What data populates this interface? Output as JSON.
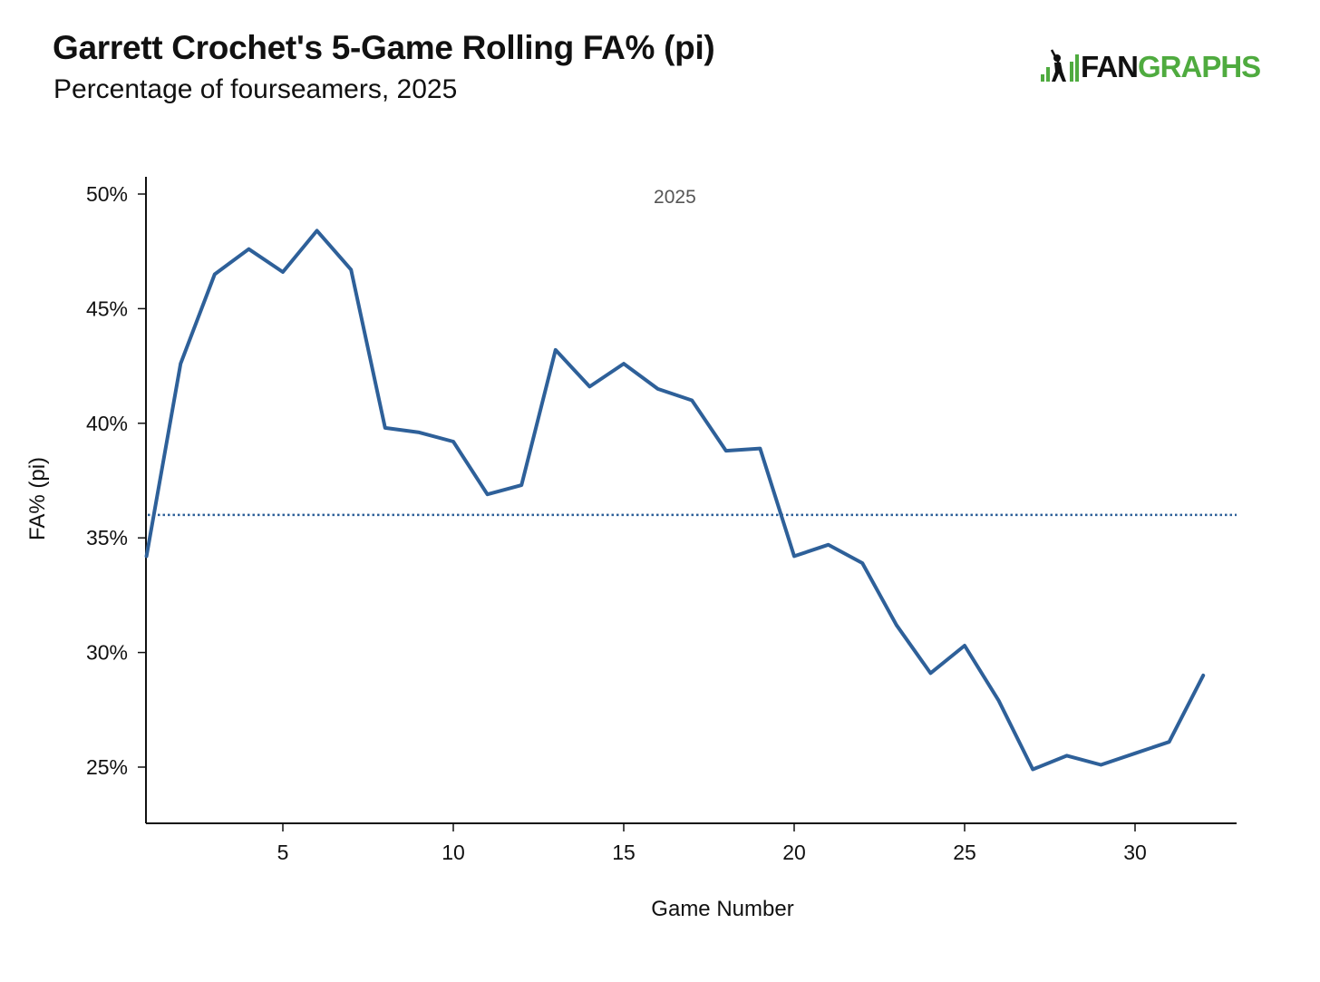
{
  "title": "Garrett Crochet's 5-Game Rolling FA% (pi)",
  "subtitle": "Percentage of fourseamers, 2025",
  "logo": {
    "fan": "FAN",
    "graphs": "GRAPHS",
    "fan_color": "#111111",
    "graphs_color": "#4fab3f",
    "icon": "fangraphs-batter-icon"
  },
  "chart_data": {
    "type": "line",
    "title": "Garrett Crochet's 5-Game Rolling FA% (pi)",
    "subtitle": "Percentage of fourseamers, 2025",
    "xlabel": "Game Number",
    "ylabel": "FA% (pi)",
    "xlim": [
      1,
      33
    ],
    "ylim": [
      22.5,
      51
    ],
    "xticks": [
      5,
      10,
      15,
      20,
      25,
      30
    ],
    "yticks": [
      25,
      30,
      35,
      40,
      45,
      50
    ],
    "ytick_labels": [
      "25%",
      "30%",
      "35%",
      "40%",
      "45%",
      "50%"
    ],
    "grid": false,
    "series": [
      {
        "name": "2025",
        "color": "#2e6099",
        "x": [
          1,
          2,
          3,
          4,
          5,
          6,
          7,
          8,
          9,
          10,
          11,
          12,
          13,
          14,
          15,
          16,
          17,
          18,
          19,
          20,
          21,
          22,
          23,
          24,
          25,
          26,
          27,
          28,
          29,
          30,
          31,
          32
        ],
        "values": [
          34.2,
          42.6,
          46.5,
          47.6,
          46.6,
          48.4,
          46.7,
          39.8,
          39.6,
          39.2,
          36.9,
          37.3,
          43.2,
          41.6,
          42.6,
          41.5,
          41.0,
          38.8,
          38.9,
          34.2,
          34.7,
          33.9,
          31.2,
          29.1,
          30.3,
          27.9,
          24.9,
          25.5,
          25.1,
          25.6,
          26.1,
          29.0
        ]
      }
    ],
    "reference_line": {
      "type": "horizontal",
      "style": "dotted",
      "value": 36.0,
      "color": "#2e6099"
    },
    "annotations": [
      {
        "text": "2025",
        "x": 16.5,
        "y": 49.6
      }
    ]
  }
}
